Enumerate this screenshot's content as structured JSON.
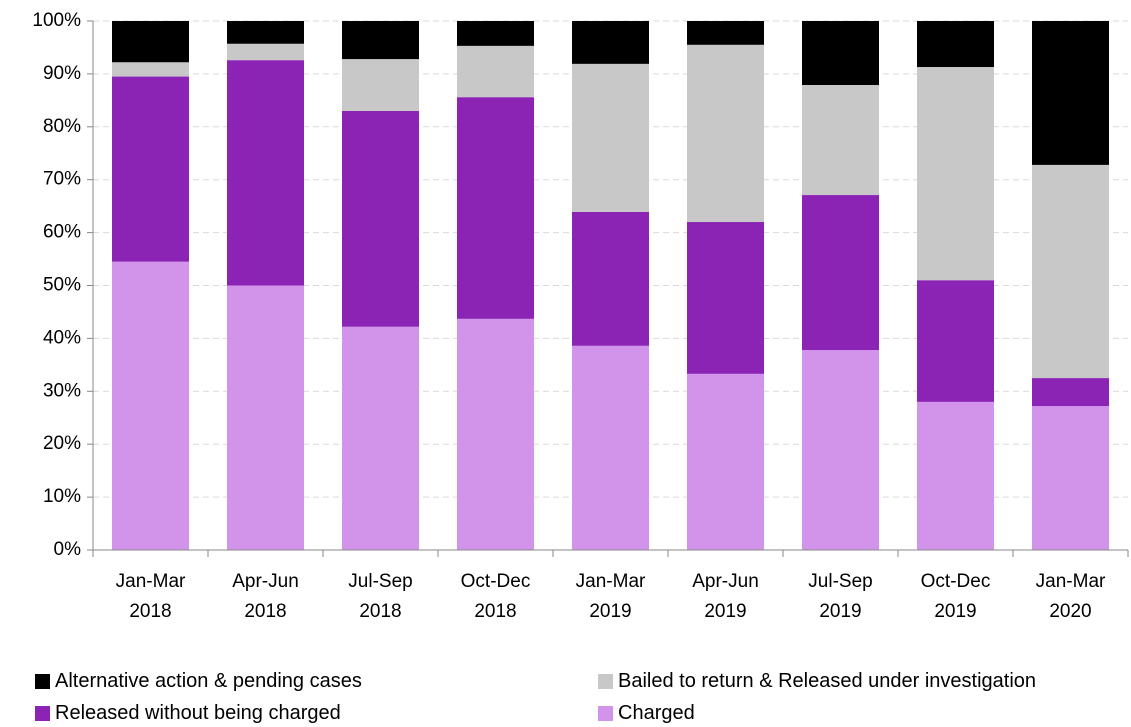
{
  "chart_data": {
    "type": "stacked_bar",
    "categories": [
      "Jan-Mar 2018",
      "Apr-Jun 2018",
      "Jul-Sep 2018",
      "Oct-Dec 2018",
      "Jan-Mar 2019",
      "Apr-Jun 2019",
      "Jul-Sep 2019",
      "Oct-Dec 2019",
      "Jan-Mar 2020"
    ],
    "series": [
      {
        "name": "Charged",
        "color": "#d294ea",
        "values": [
          54.5,
          50,
          42.2,
          43.7,
          38.6,
          33.3,
          37.8,
          28.0,
          27.2
        ]
      },
      {
        "name": "Released without being charged",
        "color": "#8b23b5",
        "values": [
          35,
          42.6,
          40.8,
          41.9,
          25.3,
          28.7,
          29.3,
          23,
          5.3
        ]
      },
      {
        "name": "Bailed to return & Released under investigation",
        "color": "#c8c8c8",
        "values": [
          2.7,
          3.1,
          9.8,
          9.7,
          28,
          33.5,
          20.8,
          40.3,
          40.3
        ]
      },
      {
        "name": "Alternative action & pending cases",
        "color": "#000000",
        "values": [
          7.8,
          4.3,
          7.2,
          4.7,
          8.1,
          4.5,
          12.1,
          8.7,
          27.2
        ]
      }
    ],
    "ylim": [
      0,
      100
    ],
    "yticks": [
      {
        "value": 0,
        "label": "0%"
      },
      {
        "value": 10,
        "label": "10%"
      },
      {
        "value": 20,
        "label": "20%"
      },
      {
        "value": 30,
        "label": "30%"
      },
      {
        "value": 40,
        "label": "40%"
      },
      {
        "value": 50,
        "label": "50%"
      },
      {
        "value": 60,
        "label": "60%"
      },
      {
        "value": 70,
        "label": "70%"
      },
      {
        "value": 80,
        "label": "80%"
      },
      {
        "value": 90,
        "label": "90%"
      },
      {
        "value": 100,
        "label": "100%"
      }
    ],
    "grid": true,
    "legend": "bottom"
  }
}
